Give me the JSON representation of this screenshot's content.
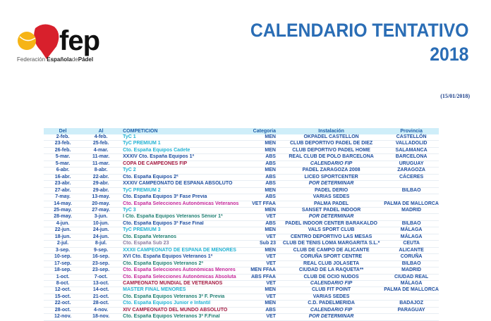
{
  "logo": {
    "brand": "fep",
    "name_light1": "Federación ",
    "name_bold": "Española",
    "name_light2": "de",
    "name_bold2": "Pádel"
  },
  "header": {
    "title_line1": "CALENDARIO TENTATIVO",
    "title_line2": "2018",
    "date": "(15/01/2018)"
  },
  "colors": {
    "navy": "#1f4fa0",
    "cyan": "#22b2d3",
    "pink": "#c4289a",
    "red": "#a3173f",
    "green": "#1f7f72",
    "grey": "#8a7aa0",
    "header_bg": "#cfeef9",
    "title": "#2a6db5"
  },
  "table": {
    "headers": [
      "Del",
      "Al",
      "COMPETICIÓN",
      "Categoria",
      "Instalación",
      "Provincia"
    ],
    "rows": [
      [
        "2-feb.",
        "4-feb.",
        "TyC 1",
        "cyan",
        "MEN",
        "OKPADEL CASTELLON",
        false,
        "CASTELLÓN"
      ],
      [
        "23-feb.",
        "25-feb.",
        "TyC PREMIUM 1",
        "cyan",
        "MEN",
        "CLUB DEPORTIVO PADEL DE DIEZ",
        false,
        "VALLADOLID"
      ],
      [
        "26-feb.",
        "4-mar.",
        "Cto. España Equipos Cadete",
        "cyan",
        "MEN",
        "CLUB DEPORTIVO PADEL HOME",
        false,
        "SALAMANCA"
      ],
      [
        "5-mar.",
        "11-mar.",
        "XXXIV Cto. España Equipos 1ª",
        "navy",
        "ABS",
        "REAL CLUB DE POLO BARCELONA",
        false,
        "BARCELONA"
      ],
      [
        "5-mar.",
        "11-mar.",
        "COPA DE CAMPEONES FIP",
        "red",
        "ABS",
        "CALENDARIO FIP",
        true,
        "URUGUAY"
      ],
      [
        "6-abr.",
        "8-abr.",
        "TyC 2",
        "cyan",
        "MEN",
        "PADEL ZARAGOZA 2008",
        false,
        "ZARAGOZA"
      ],
      [
        "16-abr.",
        "22-abr.",
        "Cto. España Equipos 2ª",
        "navy",
        "ABS",
        "LICEO SPORTCENTER",
        false,
        "CÁCERES"
      ],
      [
        "23-abr.",
        "29-abr.",
        "XXXIV CAMPEONATO DE ESPAÑA ABSOLUTO",
        "navy",
        "ABS",
        "POR DETERMINAR",
        true,
        ""
      ],
      [
        "27-abr.",
        "29-abr.",
        "TyC PREMIUM 2",
        "cyan",
        "MEN",
        "PADEL DERIO",
        false,
        "BILBAO"
      ],
      [
        "7-may.",
        "13-may.",
        "Cto. España Equipos 3ª Fase Previa",
        "navy",
        "ABS",
        "VARIAS SEDES",
        false,
        ""
      ],
      [
        "14-may.",
        "20-may.",
        "Cto. España Selecciones Autonómicas Veteranos",
        "pink",
        "VET FFAA",
        "PALMA PADEL",
        false,
        "PALMA DE MALLORCA"
      ],
      [
        "25-may.",
        "27-may.",
        "TyC 3",
        "cyan",
        "MEN",
        "SANSET PADEL INDOOR",
        false,
        "MADRID"
      ],
      [
        "28-may.",
        "3-jun.",
        "I Cto. España Equipos Veteranos Sénior 1ª",
        "green",
        "VET",
        "POR DETERMINAR",
        true,
        ""
      ],
      [
        "4-jun.",
        "10-jun.",
        "Cto. España Equipos 3ª Fase Final",
        "navy",
        "ABS",
        "PADEL INDOOR CENTER BARAKALDO",
        false,
        "BILBAO"
      ],
      [
        "22-jun.",
        "24-jun.",
        "TyC PREMIUM 3",
        "cyan",
        "MEN",
        "VALS SPORT CLUB",
        false,
        "MÁLAGA"
      ],
      [
        "18-jun.",
        "24-jun.",
        "Cto. España Veteranos",
        "green",
        "VET",
        "CENTRO DEPORTIVO LAS MESAS",
        false,
        "MÁLAGA"
      ],
      [
        "2-jul.",
        "8-jul.",
        "Cto. España Sub 23",
        "grey",
        "Sub 23",
        "CLUB DE TENIS LOMA MARGARITA S.L.*",
        false,
        "CEUTA"
      ],
      [
        "3-sep.",
        "9-sep.",
        "XXXII CAMPEONATO DE ESPAÑA DE MENORES",
        "cyan",
        "MEN",
        "CLUB DE CAMPO DE ALICANTE",
        false,
        "ALICANTE"
      ],
      [
        "10-sep.",
        "16-sep.",
        "XVI Cto. España Equipos Veteranos 1ª",
        "navy",
        "VET",
        "CORUÑA SPORT CENTRE",
        false,
        "CORUÑA"
      ],
      [
        "17-sep.",
        "23-sep.",
        "Cto. España Equipos Veteranos 2ª",
        "green",
        "VET",
        "REAL CLUB JOLASETA",
        false,
        "BILBAO"
      ],
      [
        "18-sep.",
        "23-sep.",
        "Cto. España Selecciones Autonómicas Menores",
        "pink",
        "MEN FFAA",
        "CIUDAD DE LA RAQUETA**",
        false,
        "MADRID"
      ],
      [
        "1-oct.",
        "7-oct.",
        "Cto. España Selecciones Autonómicas Absoluta",
        "pink",
        "ABS FFAA",
        "CLUB DE OCIO NUDOS",
        false,
        "CIUDAD REAL"
      ],
      [
        "8-oct.",
        "13-oct.",
        "CAMPEONATO MUNDIAL DE VETERANOS",
        "red",
        "VET",
        "CALENDARIO FIP",
        true,
        "MÁLAGA"
      ],
      [
        "12-oct.",
        "14-oct.",
        "MASTER FINAL MENORES",
        "cyan",
        "MEN",
        "CLUB FIT POINT",
        false,
        "PALMA DE MALLORCA"
      ],
      [
        "15-oct.",
        "21-oct.",
        "Cto. España Equipos Veteranos 3ª F. Previa",
        "green",
        "VET",
        "VARIAS SEDES",
        false,
        ""
      ],
      [
        "22-oct.",
        "28-oct.",
        "Cto. España Equipos Junior e Infantil",
        "cyan",
        "MEN",
        "C.D. PADELMERIDA",
        false,
        "BADAJOZ"
      ],
      [
        "28-oct.",
        "4-nov.",
        "XIV CAMPEONATO DEL MUNDO ABSOLUTO",
        "red",
        "ABS",
        "CALENDARIO FIP",
        true,
        "PARAGUAY"
      ],
      [
        "12-nov.",
        "18-nov.",
        "Cto. España Equipos Veteranos 3ª F.Final",
        "green",
        "VET",
        "POR DETERMINAR",
        true,
        ""
      ]
    ]
  }
}
